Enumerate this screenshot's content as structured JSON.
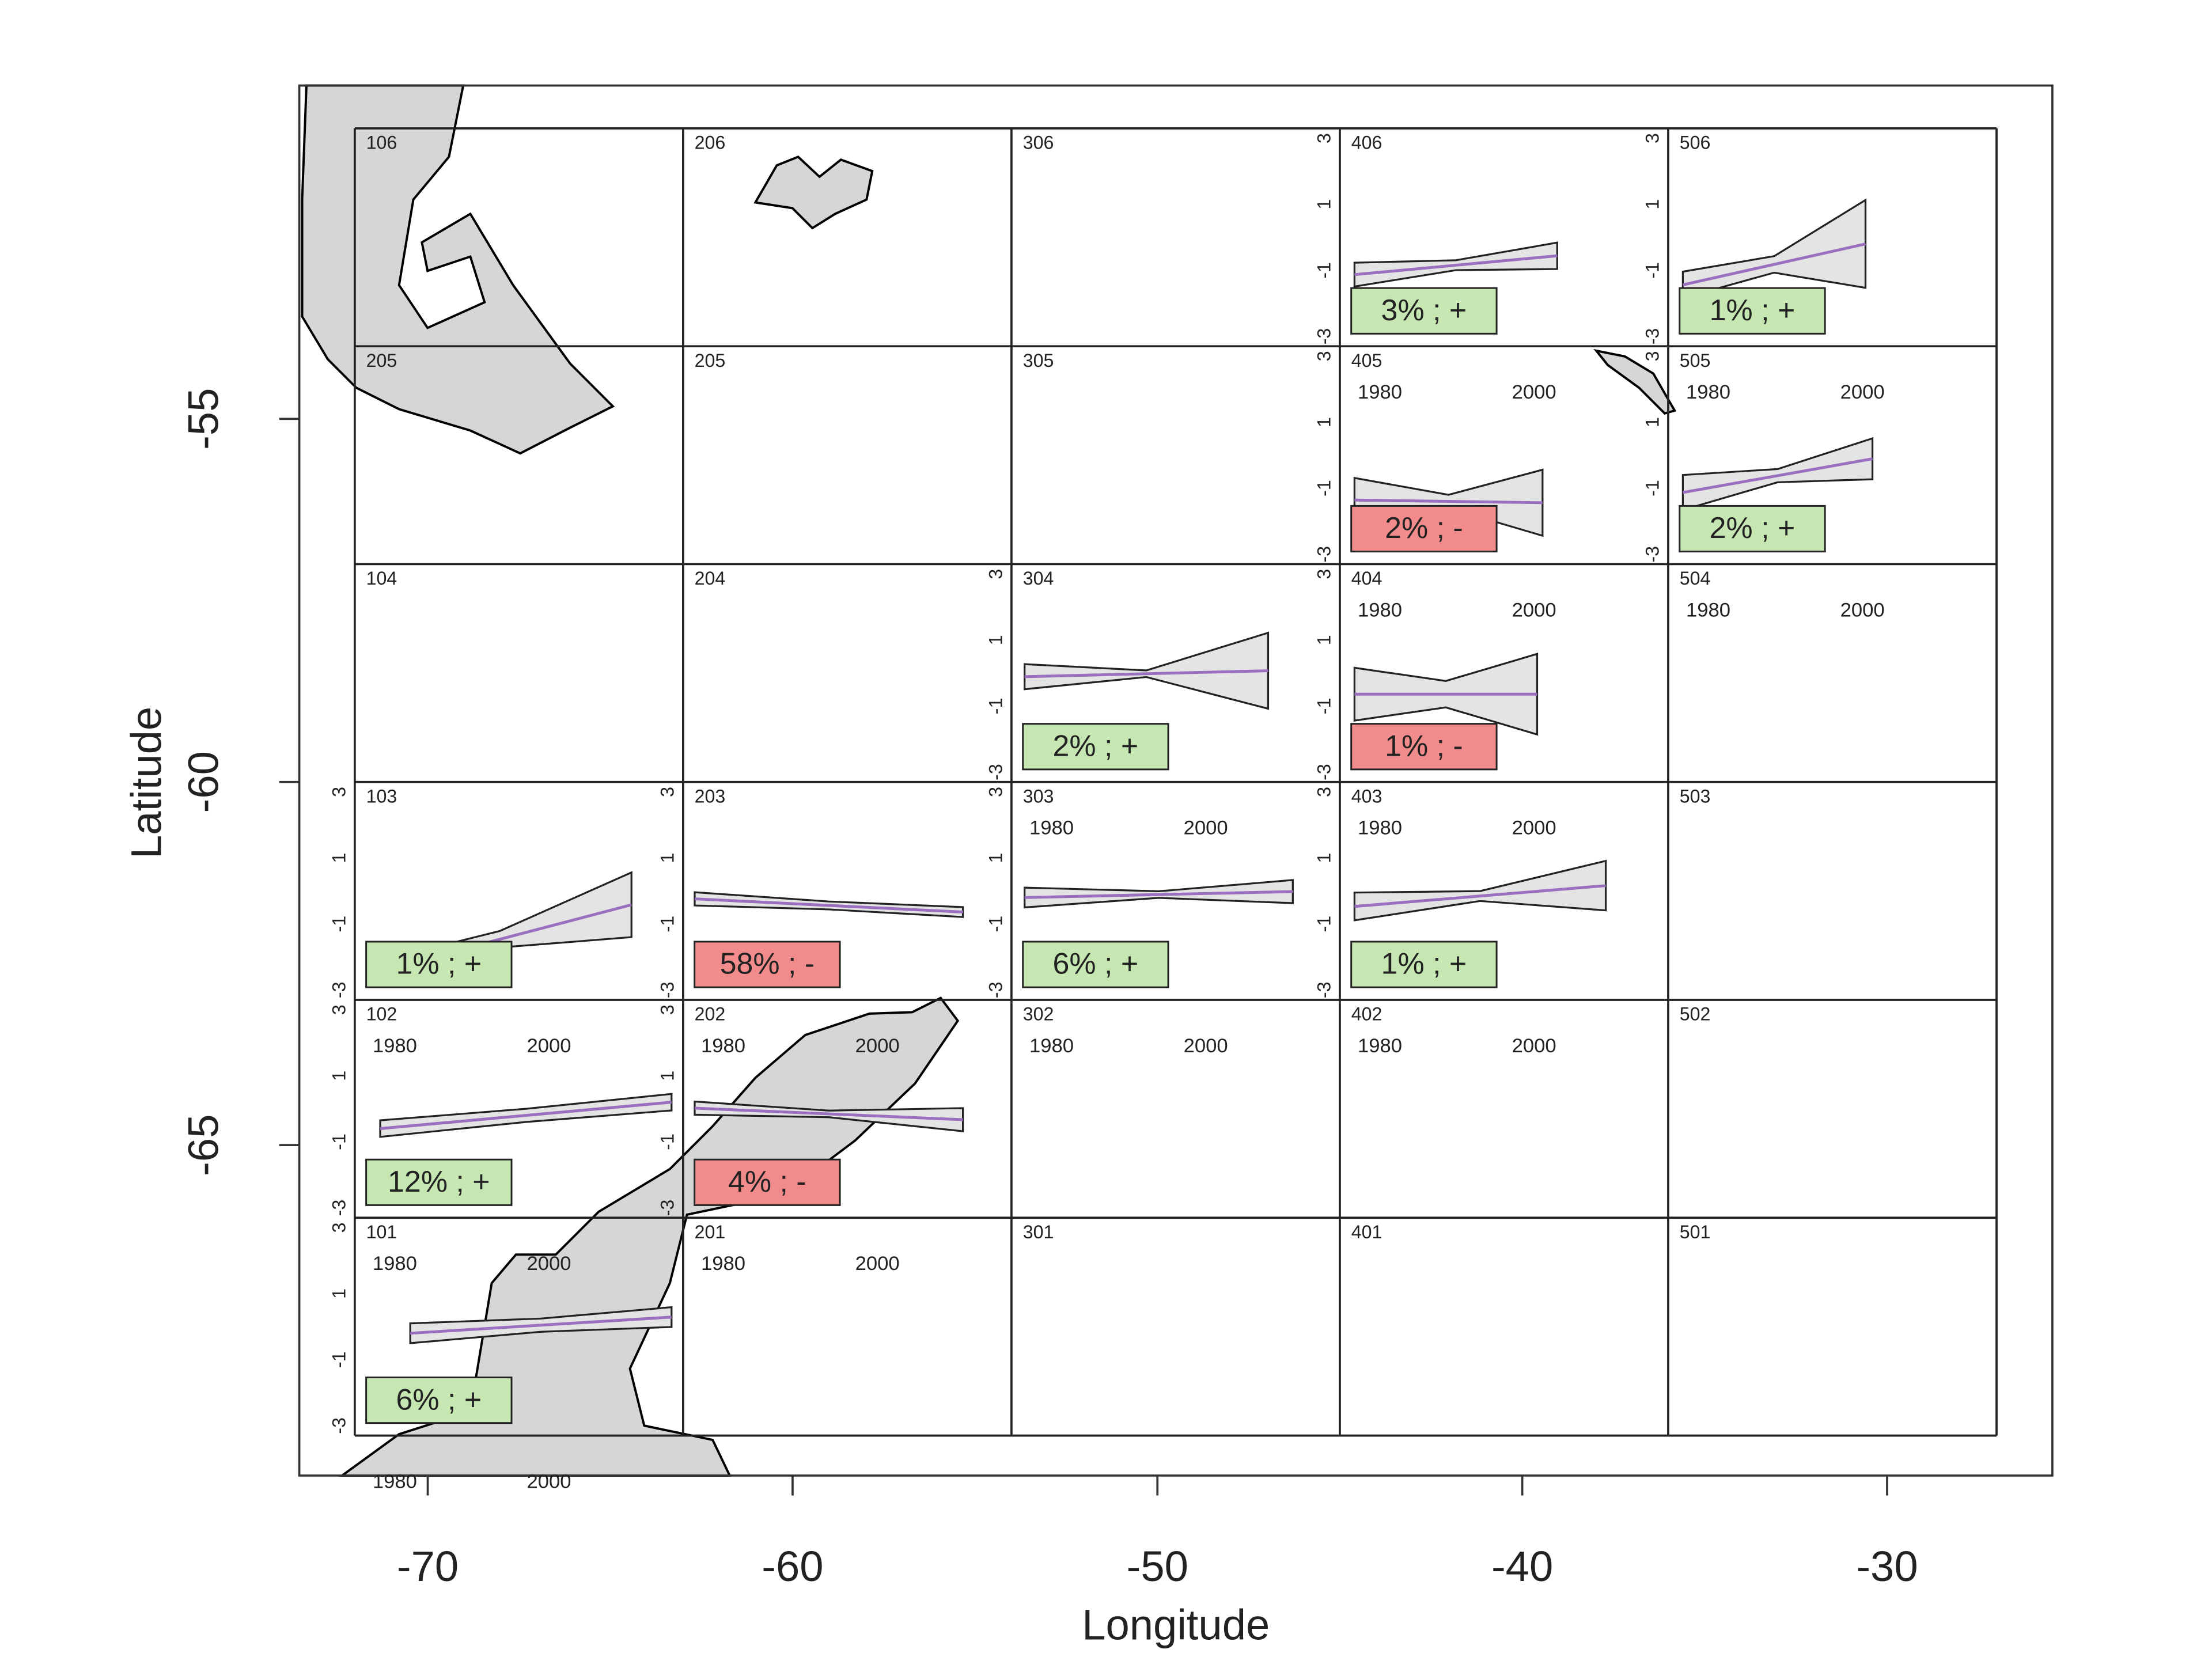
{
  "chart_data": {
    "type": "grid_map",
    "x_label": "Longitude",
    "y_label": "Latitude",
    "xlim": [
      -73.52,
      -25.47
    ],
    "ylim": [
      -69.55,
      -50.41
    ],
    "xticks": [
      -70,
      -60,
      -50,
      -40,
      -30
    ],
    "yticks": [
      -55,
      -60,
      -65
    ],
    "grid_x": [
      -72,
      -63,
      -54,
      -45,
      -36,
      -27
    ],
    "grid_y": [
      -51,
      -54,
      -57,
      -60,
      -63,
      -66,
      -69
    ],
    "panel_xlim": [
      1974.8,
      2017.4
    ],
    "panel_ylim": [
      -3.3,
      3.3
    ],
    "panel_xticks": [
      1980,
      2000
    ],
    "panel_yticks": [
      3,
      1,
      -1,
      -3
    ],
    "colors": {
      "+": "#c6e6b2",
      "-": "#f28b8b",
      "band": "#e4e4e4",
      "fit": "#9a6fc0"
    },
    "cells": [
      [
        {
          "id": "106"
        },
        {
          "id": "206"
        },
        {
          "id": "306"
        },
        {
          "id": "406",
          "trend": {
            "label": "3% ; +",
            "percent": 3,
            "sign": "+",
            "x": [
              1976.7,
              2003
            ],
            "fit": [
              -1.13,
              -0.56
            ],
            "ci": [
              0.36,
              0.15,
              0.4
            ]
          }
        },
        {
          "id": "506",
          "trend": {
            "label": "1% ; +",
            "percent": 1,
            "sign": "+",
            "x": [
              1976.7,
              2000.4
            ],
            "fit": [
              -1.44,
              -0.2
            ],
            "ci": [
              0.4,
              0.25,
              1.33
            ]
          }
        }
      ],
      [
        {
          "id": "205"
        },
        {
          "id": "205"
        },
        {
          "id": "305"
        },
        {
          "id": "405",
          "trend": {
            "label": "2% ; -",
            "percent": 2,
            "sign": "-",
            "x": [
              1976.7,
              2001.1
            ],
            "fit": [
              -1.36,
              -1.44
            ],
            "ci": [
              0.67,
              0.2,
              1.0
            ]
          }
        },
        {
          "id": "505",
          "trend": {
            "label": "2% ; +",
            "percent": 2,
            "sign": "+",
            "x": [
              1976.7,
              2001.3
            ],
            "fit": [
              -1.13,
              -0.11
            ],
            "ci": [
              0.53,
              0.2,
              0.62
            ]
          }
        }
      ],
      [
        {
          "id": "104"
        },
        {
          "id": "204"
        },
        {
          "id": "304",
          "trend": {
            "label": "2% ; +",
            "percent": 2,
            "sign": "+",
            "x": [
              1976.5,
              2008.1
            ],
            "fit": [
              -0.11,
              0.07
            ],
            "ci": [
              0.38,
              0.1,
              1.15
            ]
          }
        },
        {
          "id": "404",
          "trend": {
            "label": "1% ; -",
            "percent": 1,
            "sign": "-",
            "x": [
              1976.7,
              2000.4
            ],
            "fit": [
              -0.64,
              -0.64
            ],
            "ci": [
              0.8,
              0.4,
              1.22
            ]
          }
        },
        {
          "id": "504"
        }
      ],
      [
        {
          "id": "103",
          "trend": {
            "label": "1% ; +",
            "percent": 1,
            "sign": "+",
            "x": [
              1976.5,
              2010.7
            ],
            "fit": [
              -2.51,
              -0.42
            ],
            "ci": [
              0.3,
              0.25,
              0.98
            ]
          }
        },
        {
          "id": "203",
          "trend": {
            "label": "58% ; -",
            "percent": 58,
            "sign": "-",
            "x": [
              1976.3,
              2011.1
            ],
            "fit": [
              -0.24,
              -0.64
            ],
            "ci": [
              0.2,
              0.12,
              0.15
            ]
          }
        },
        {
          "id": "303",
          "trend": {
            "label": "6% ; +",
            "percent": 6,
            "sign": "+",
            "x": [
              1976.5,
              2011.3
            ],
            "fit": [
              -0.2,
              -0.02
            ],
            "ci": [
              0.3,
              0.1,
              0.35
            ]
          }
        },
        {
          "id": "403",
          "trend": {
            "label": "1% ; +",
            "percent": 1,
            "sign": "+",
            "x": [
              1976.7,
              2009.3
            ],
            "fit": [
              -0.47,
              0.16
            ],
            "ci": [
              0.42,
              0.15,
              0.75
            ]
          }
        },
        {
          "id": "503"
        }
      ],
      [
        {
          "id": "102",
          "trend": {
            "label": "12% ; +",
            "percent": 12,
            "sign": "+",
            "x": [
              1978.1,
              2015.9
            ],
            "fit": [
              -0.6,
              0.2
            ],
            "ci": [
              0.25,
              0.2,
              0.25
            ]
          }
        },
        {
          "id": "202",
          "trend": {
            "label": "4% ; -",
            "percent": 4,
            "sign": "-",
            "x": [
              1976.3,
              2011.1
            ],
            "fit": [
              0.02,
              -0.33
            ],
            "ci": [
              0.2,
              0.1,
              0.35
            ]
          }
        },
        {
          "id": "302"
        },
        {
          "id": "402"
        },
        {
          "id": "502"
        }
      ],
      [
        {
          "id": "101",
          "trend": {
            "label": "6% ; +",
            "percent": 6,
            "sign": "+",
            "x": [
              1982,
              2015.9
            ],
            "fit": [
              -0.2,
              0.29
            ],
            "ci": [
              0.3,
              0.2,
              0.3
            ]
          }
        },
        {
          "id": "201"
        },
        {
          "id": "301"
        },
        {
          "id": "401"
        },
        {
          "id": "501"
        }
      ]
    ]
  }
}
